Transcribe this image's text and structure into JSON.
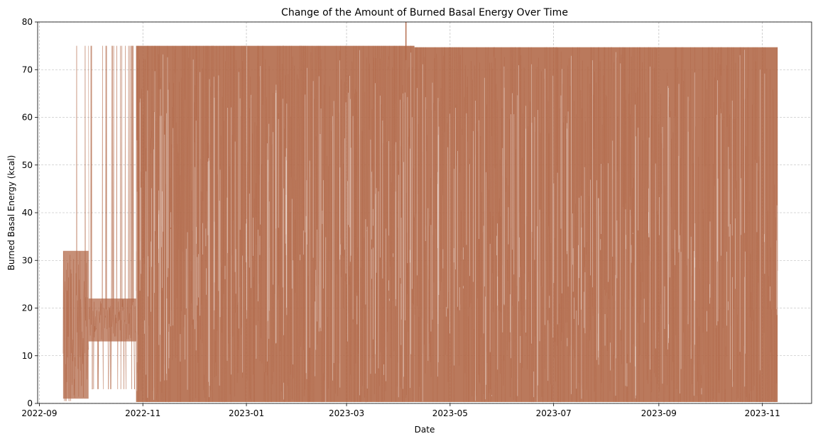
{
  "chart_data": {
    "type": "line",
    "title": "Change of the Amount of Burned Basal Energy Over Time",
    "xlabel": "Date",
    "ylabel": "Burned Basal Energy (kcal)",
    "xlim": [
      "2022-08-31",
      "2023-11-30"
    ],
    "ylim": [
      0,
      80
    ],
    "x_ticks": [
      "2022-09",
      "2022-11",
      "2023-01",
      "2023-03",
      "2023-05",
      "2023-07",
      "2023-09",
      "2023-11"
    ],
    "y_ticks": [
      0,
      10,
      20,
      30,
      40,
      50,
      60,
      70,
      80
    ],
    "grid": true,
    "legend": "none",
    "line_color": "#b36a4a",
    "data_range": [
      "2022-09-15",
      "2023-11-10"
    ],
    "series": [
      {
        "type": "dense-oscillation",
        "segments": [
          {
            "start": "2022-09-15",
            "end": "2022-09-30",
            "low": 0.5,
            "high": 75,
            "band_low": 1,
            "band_high": 32
          },
          {
            "start": "2022-09-30",
            "end": "2022-10-28",
            "low": 3,
            "high": 75,
            "band_low": 13,
            "band_high": 22
          },
          {
            "start": "2022-10-28",
            "end": "2023-04-10",
            "low": 0.3,
            "high": 75,
            "band_low": 0.3,
            "band_high": 75
          },
          {
            "start": "2023-04-10",
            "end": "2023-11-10",
            "low": 0.3,
            "high": 74.7,
            "band_low": 0.3,
            "band_high": 74.7
          }
        ],
        "outliers": [
          {
            "x": "2023-04-05",
            "y": 80
          }
        ]
      }
    ]
  }
}
